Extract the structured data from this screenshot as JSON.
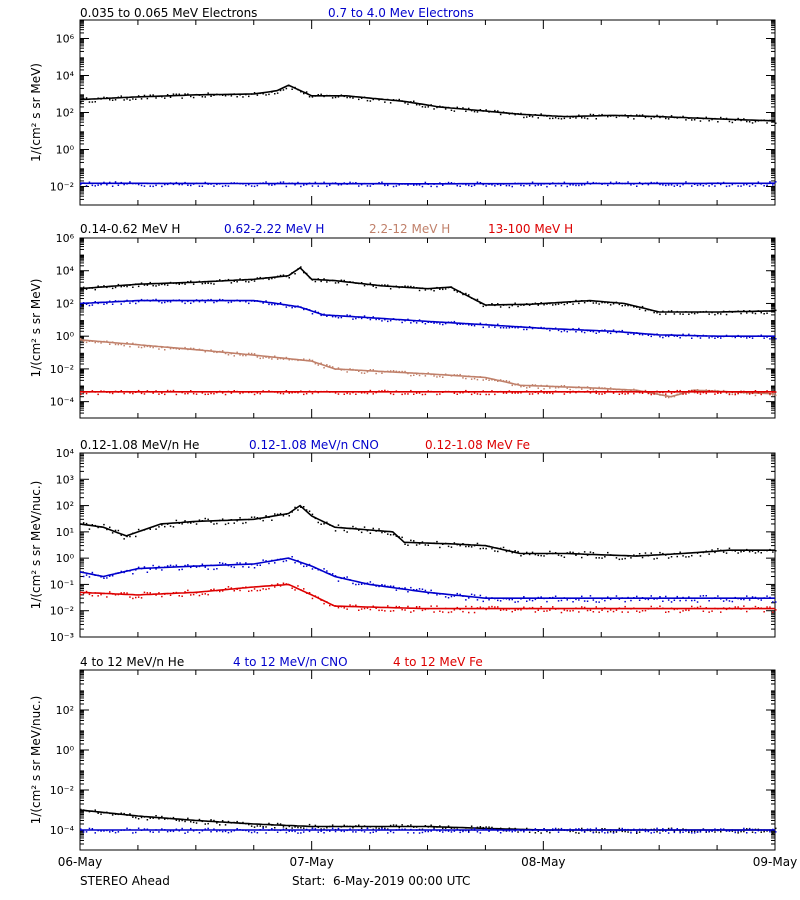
{
  "x_axis": {
    "tick_labels": [
      "06-May",
      "07-May",
      "08-May",
      "09-May"
    ],
    "range_days": [
      0,
      3
    ]
  },
  "footer": {
    "spacecraft": "STEREO Ahead",
    "start_label": "Start:  6-May-2019 00:00 UTC"
  },
  "colors": {
    "black": "#000000",
    "blue": "#0000cc",
    "tan": "#c0806a",
    "red": "#dd0000"
  },
  "chart_data": [
    {
      "type": "scatter",
      "ylabel": "1/(cm² s sr MeV)",
      "y_scale": "log",
      "ylim_exp": [
        -3,
        7
      ],
      "y_tick_exps": [
        -2,
        0,
        2,
        4,
        6
      ],
      "y_tick_labels": [
        "10⁻²",
        "10⁰",
        "10²",
        "10⁴",
        "10⁶"
      ],
      "series": [
        {
          "name": "0.035 to 0.065 MeV Electrons",
          "color": "black",
          "x": [
            0,
            0.25,
            0.5,
            0.75,
            0.85,
            0.9,
            1.0,
            1.15,
            1.25,
            1.4,
            1.55,
            1.75,
            1.9,
            2.1,
            2.3,
            2.5,
            2.75,
            3.0
          ],
          "y": [
            500,
            700,
            900,
            1000,
            1500,
            3000,
            800,
            800,
            600,
            400,
            200,
            120,
            80,
            60,
            70,
            60,
            45,
            35
          ]
        },
        {
          "name": "0.7 to 4.0 Mev Electrons",
          "color": "blue",
          "x": [
            0,
            1.5,
            3.0
          ],
          "y": [
            0.015,
            0.014,
            0.015
          ]
        }
      ]
    },
    {
      "type": "scatter",
      "ylabel": "1/(cm² s sr MeV)",
      "y_scale": "log",
      "ylim_exp": [
        -5,
        6
      ],
      "y_tick_exps": [
        -4,
        -2,
        0,
        2,
        4,
        6
      ],
      "y_tick_labels": [
        "10⁻⁴",
        "10⁻²",
        "10⁰",
        "10²",
        "10⁴",
        "10⁶"
      ],
      "series": [
        {
          "name": "0.14-0.62 MeV H",
          "color": "black",
          "x": [
            0,
            0.25,
            0.5,
            0.75,
            0.9,
            0.95,
            1.0,
            1.1,
            1.3,
            1.5,
            1.6,
            1.75,
            1.95,
            2.2,
            2.35,
            2.5,
            2.75,
            3.0
          ],
          "y": [
            800,
            1500,
            2000,
            3000,
            5000,
            15000,
            3000,
            2500,
            1200,
            800,
            1000,
            80,
            90,
            150,
            100,
            30,
            30,
            35
          ]
        },
        {
          "name": "0.62-2.22 MeV H",
          "color": "blue",
          "x": [
            0,
            0.25,
            0.5,
            0.75,
            0.85,
            0.95,
            1.05,
            1.2,
            1.5,
            1.75,
            2.0,
            2.3,
            2.5,
            2.75,
            3.0
          ],
          "y": [
            100,
            150,
            150,
            150,
            100,
            60,
            20,
            15,
            8,
            5,
            3,
            2,
            1.2,
            1,
            1
          ]
        },
        {
          "name": "2.2-12 MeV H",
          "color": "tan",
          "x": [
            0,
            0.25,
            0.5,
            0.75,
            1.0,
            1.1,
            1.3,
            1.5,
            1.75,
            1.9,
            2.2,
            2.4,
            2.55,
            2.65,
            3.0
          ],
          "y": [
            0.6,
            0.3,
            0.15,
            0.07,
            0.03,
            0.01,
            0.007,
            0.005,
            0.003,
            0.001,
            0.0007,
            0.0005,
            0.0002,
            0.0005,
            0.0003
          ]
        },
        {
          "name": "13-100 MeV H",
          "color": "red",
          "x": [
            0,
            1.5,
            3.0
          ],
          "y": [
            0.0004,
            0.0004,
            0.0004
          ]
        }
      ]
    },
    {
      "type": "scatter",
      "ylabel": "1/(cm² s sr MeV/nuc.)",
      "y_scale": "log",
      "ylim_exp": [
        -3,
        4
      ],
      "y_tick_exps": [
        -3,
        -2,
        -1,
        0,
        1,
        2,
        3,
        4
      ],
      "y_tick_labels": [
        "10⁻³",
        "10⁻²",
        "10⁻¹",
        "10⁰",
        "10¹",
        "10²",
        "10³",
        "10⁴"
      ],
      "series": [
        {
          "name": "0.12-1.08 MeV/n He",
          "color": "black",
          "x": [
            0,
            0.1,
            0.2,
            0.35,
            0.5,
            0.75,
            0.9,
            0.95,
            1.0,
            1.1,
            1.35,
            1.4,
            1.6,
            1.75,
            1.9,
            2.1,
            2.4,
            2.6,
            2.8,
            3.0
          ],
          "y": [
            20,
            15,
            7,
            20,
            25,
            30,
            50,
            100,
            40,
            15,
            10,
            4,
            3.5,
            3,
            1.5,
            1.5,
            1.2,
            1.5,
            2,
            2
          ]
        },
        {
          "name": "0.12-1.08 MeV/n CNO",
          "color": "blue",
          "x": [
            0,
            0.1,
            0.25,
            0.5,
            0.75,
            0.9,
            1.0,
            1.1,
            1.25,
            1.5,
            1.75,
            2.0,
            2.5,
            3.0
          ],
          "y": [
            0.3,
            0.2,
            0.4,
            0.5,
            0.6,
            1.0,
            0.5,
            0.2,
            0.1,
            0.05,
            0.03,
            0.03,
            0.03,
            0.03
          ]
        },
        {
          "name": "0.12-1.08 MeV Fe",
          "color": "red",
          "x": [
            0,
            0.25,
            0.5,
            0.75,
            0.9,
            1.0,
            1.1,
            1.5,
            2.0,
            2.5,
            3.0
          ],
          "y": [
            0.05,
            0.04,
            0.05,
            0.08,
            0.1,
            0.04,
            0.015,
            0.012,
            0.012,
            0.012,
            0.012
          ]
        }
      ]
    },
    {
      "type": "scatter",
      "ylabel": "1/(cm² s sr MeV/nuc.)",
      "y_scale": "log",
      "ylim_exp": [
        -5,
        4
      ],
      "y_tick_exps": [
        -4,
        -2,
        0,
        2
      ],
      "y_tick_labels": [
        "10⁻⁴",
        "10⁻²",
        "10⁰",
        "10²"
      ],
      "series": [
        {
          "name": "4 to 12 MeV/n He",
          "color": "black",
          "x": [
            0,
            0.25,
            0.5,
            0.75,
            1.0,
            1.25,
            1.5,
            1.75,
            2.0,
            2.5,
            3.0
          ],
          "y": [
            0.001,
            0.0005,
            0.0003,
            0.0002,
            0.00015,
            0.00015,
            0.00015,
            0.00012,
            0.0001,
            0.0001,
            0.0001
          ]
        },
        {
          "name": "4 to 12 MeV/n CNO",
          "color": "blue",
          "x": [
            0,
            1.0,
            2.0,
            3.0
          ],
          "y": [
            0.0001,
            0.0001,
            0.0001,
            0.0001
          ]
        },
        {
          "name": "4 to 12 MeV Fe",
          "color": "red",
          "x": [],
          "y": []
        }
      ]
    }
  ]
}
